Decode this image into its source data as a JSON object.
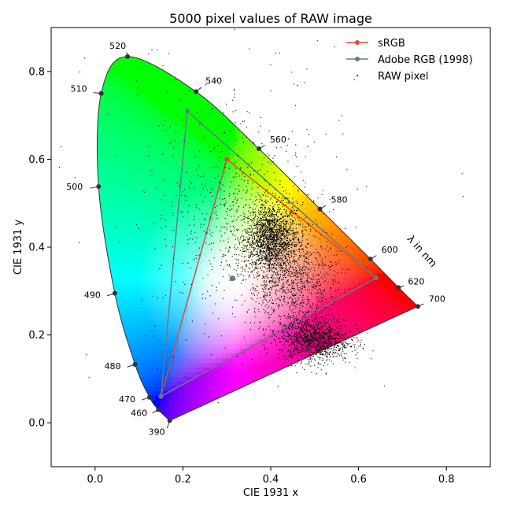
{
  "chart_data": {
    "type": "scatter",
    "title": "5000 pixel values of RAW image",
    "xlabel": "CIE 1931 x",
    "ylabel": "CIE 1931 y",
    "xlim": [
      -0.1,
      0.9
    ],
    "ylim": [
      -0.1,
      0.9
    ],
    "x_ticks": [
      0.0,
      0.2,
      0.4,
      0.6,
      0.8
    ],
    "y_ticks": [
      0.0,
      0.2,
      0.4,
      0.6,
      0.8
    ],
    "x_tick_labels": [
      "0.0",
      "0.2",
      "0.4",
      "0.6",
      "0.8"
    ],
    "y_tick_labels": [
      "0.0",
      "0.2",
      "0.4",
      "0.6",
      "0.8"
    ],
    "grid": false,
    "legend_position": "top-right",
    "wavelength_axis_label": "λ in nm",
    "spectral_locus_labels": [
      {
        "nm": "390",
        "x": 0.17,
        "y": 0.005
      },
      {
        "nm": "460",
        "x": 0.144,
        "y": 0.03
      },
      {
        "nm": "470",
        "x": 0.124,
        "y": 0.058
      },
      {
        "nm": "480",
        "x": 0.091,
        "y": 0.133
      },
      {
        "nm": "490",
        "x": 0.045,
        "y": 0.295
      },
      {
        "nm": "500",
        "x": 0.008,
        "y": 0.538
      },
      {
        "nm": "510",
        "x": 0.014,
        "y": 0.75
      },
      {
        "nm": "520",
        "x": 0.074,
        "y": 0.834
      },
      {
        "nm": "540",
        "x": 0.23,
        "y": 0.754
      },
      {
        "nm": "560",
        "x": 0.373,
        "y": 0.624
      },
      {
        "nm": "580",
        "x": 0.512,
        "y": 0.487
      },
      {
        "nm": "600",
        "x": 0.627,
        "y": 0.373
      },
      {
        "nm": "620",
        "x": 0.691,
        "y": 0.308
      },
      {
        "nm": "700",
        "x": 0.735,
        "y": 0.265
      }
    ],
    "series": [
      {
        "name": "sRGB",
        "color": "#e8473a",
        "points": [
          [
            0.64,
            0.33
          ],
          [
            0.3,
            0.6
          ],
          [
            0.15,
            0.06
          ],
          [
            0.64,
            0.33
          ]
        ]
      },
      {
        "name": "Adobe RGB (1998)",
        "color": "#607d8b",
        "points": [
          [
            0.64,
            0.33
          ],
          [
            0.21,
            0.71
          ],
          [
            0.15,
            0.06
          ],
          [
            0.64,
            0.33
          ]
        ]
      },
      {
        "name": "RAW pixel",
        "color": "#000000",
        "points": []
      }
    ],
    "white_point": {
      "x": 0.3127,
      "y": 0.329
    },
    "raw_pixel_clusters": [
      {
        "cx": 0.4,
        "cy": 0.42,
        "sx": 0.03,
        "sy": 0.04,
        "n": 1800
      },
      {
        "cx": 0.5,
        "cy": 0.19,
        "sx": 0.04,
        "sy": 0.025,
        "n": 1400
      },
      {
        "cx": 0.45,
        "cy": 0.32,
        "sx": 0.05,
        "sy": 0.06,
        "n": 1000
      },
      {
        "cx": 0.35,
        "cy": 0.45,
        "sx": 0.08,
        "sy": 0.09,
        "n": 500
      },
      {
        "cx": 0.3,
        "cy": 0.5,
        "sx": 0.15,
        "sy": 0.2,
        "n": 300
      }
    ]
  }
}
